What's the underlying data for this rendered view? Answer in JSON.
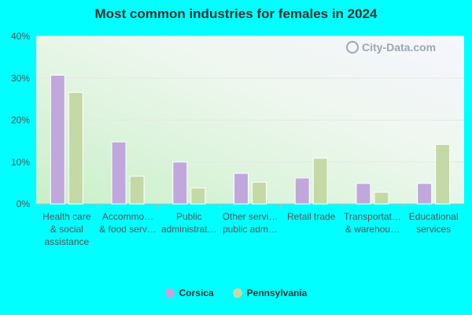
{
  "chart_data": {
    "type": "bar",
    "title": "Most common industries for females in 2024",
    "categories": [
      [
        "Health care",
        "& social",
        "assistance"
      ],
      [
        "Accommo…",
        "& food serv…"
      ],
      [
        "Public",
        "administrat…"
      ],
      [
        "Other servi…",
        "public adm…"
      ],
      [
        "Retail trade"
      ],
      [
        "Transportat…",
        "& warehou…"
      ],
      [
        "Educational",
        "services"
      ]
    ],
    "series": [
      {
        "name": "Corsica",
        "color": "#c0a8dc",
        "values": [
          30.7,
          14.8,
          10.0,
          7.3,
          6.2,
          4.9,
          4.9
        ]
      },
      {
        "name": "Pennsylvania",
        "color": "#c4d9a6",
        "values": [
          26.6,
          6.6,
          3.8,
          5.2,
          10.9,
          2.8,
          14.2
        ]
      }
    ],
    "ylim": [
      0,
      40
    ],
    "yticks": [
      "0%",
      "10%",
      "20%",
      "30%",
      "40%"
    ],
    "ytick_values": [
      0,
      10,
      20,
      30,
      40
    ],
    "grid": true,
    "legend_position": "bottom-center"
  },
  "watermark": "City-Data.com"
}
